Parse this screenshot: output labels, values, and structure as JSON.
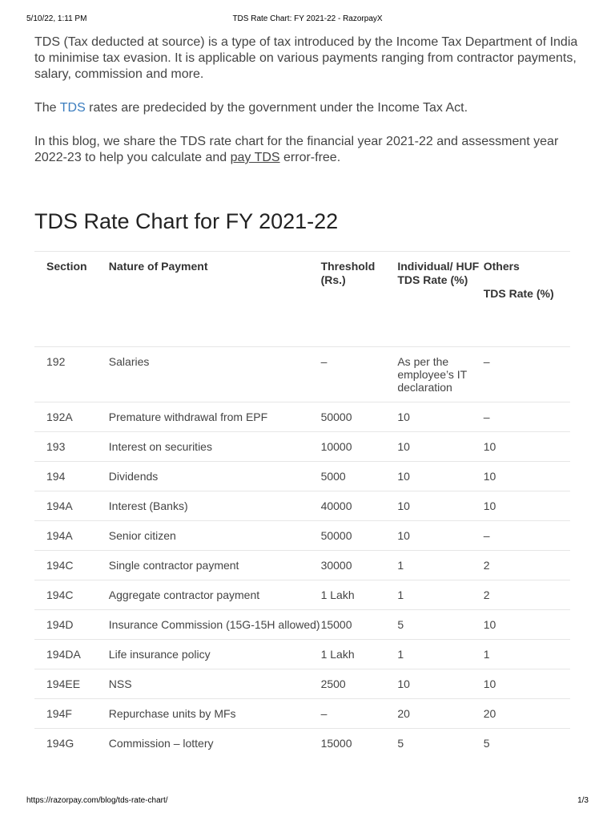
{
  "print_header": {
    "datetime": "5/10/22, 1:11 PM",
    "page_title": "TDS Rate Chart: FY 2021-22 - RazorpayX"
  },
  "print_footer": {
    "url": "https://razorpay.com/blog/tds-rate-chart/",
    "page_number": "1/3"
  },
  "intro": {
    "p1": "TDS (Tax deducted at source) is a type of tax introduced by the Income Tax Department of India to minimise tax evasion. It is applicable on various payments ranging from contractor payments, salary, commission and more.",
    "p2_before": "The ",
    "p2_link": "TDS",
    "p2_after": " rates are predecided by the government under the Income Tax Act.",
    "p3_before": "In this blog, we share the TDS rate chart for the financial year 2021-22 and assessment year 2022-23 to help you calculate and ",
    "p3_link": "pay TDS",
    "p3_after": " error-free."
  },
  "section_title": "TDS Rate Chart for FY 2021-22",
  "table": {
    "headers": {
      "section": "Section",
      "nature": "Nature of Payment",
      "threshold": "Threshold (Rs.)",
      "individual_main": "Individual/ HUF",
      "individual_sub": "TDS Rate (%)",
      "others_main": "Others",
      "others_sub": "TDS Rate (%)"
    },
    "rows": [
      {
        "section": "192",
        "nature": "Salaries",
        "threshold": "–",
        "individual": "As per the employee’s IT declaration",
        "others": "–"
      },
      {
        "section": "192A",
        "nature": "Premature withdrawal from EPF",
        "threshold": "50000",
        "individual": "10",
        "others": "–"
      },
      {
        "section": "193",
        "nature": "Interest on securities",
        "threshold": "10000",
        "individual": "10",
        "others": "10"
      },
      {
        "section": "194",
        "nature": "Dividends",
        "threshold": "5000",
        "individual": "10",
        "others": "10"
      },
      {
        "section": "194A",
        "nature": "Interest (Banks)",
        "threshold": "40000",
        "individual": "10",
        "others": "10"
      },
      {
        "section": "194A",
        "nature": "Senior citizen",
        "threshold": "50000",
        "individual": "10",
        "others": "–"
      },
      {
        "section": "194C",
        "nature": "Single contractor payment",
        "threshold": "30000",
        "individual": "1",
        "others": "2"
      },
      {
        "section": "194C",
        "nature": "Aggregate contractor payment",
        "threshold": "1 Lakh",
        "individual": "1",
        "others": "2"
      },
      {
        "section": "194D",
        "nature": "Insurance Commission (15G-15H allowed)",
        "threshold": "15000",
        "individual": "5",
        "others": "10"
      },
      {
        "section": "194DA",
        "nature": "Life insurance policy",
        "threshold": "1 Lakh",
        "individual": "1",
        "others": "1"
      },
      {
        "section": "194EE",
        "nature": "NSS",
        "threshold": "2500",
        "individual": "10",
        "others": "10"
      },
      {
        "section": "194F",
        "nature": "Repurchase units by MFs",
        "threshold": "–",
        "individual": "20",
        "others": "20"
      },
      {
        "section": "194G",
        "nature": "Commission – lottery",
        "threshold": "15000",
        "individual": "5",
        "others": "5"
      }
    ]
  }
}
